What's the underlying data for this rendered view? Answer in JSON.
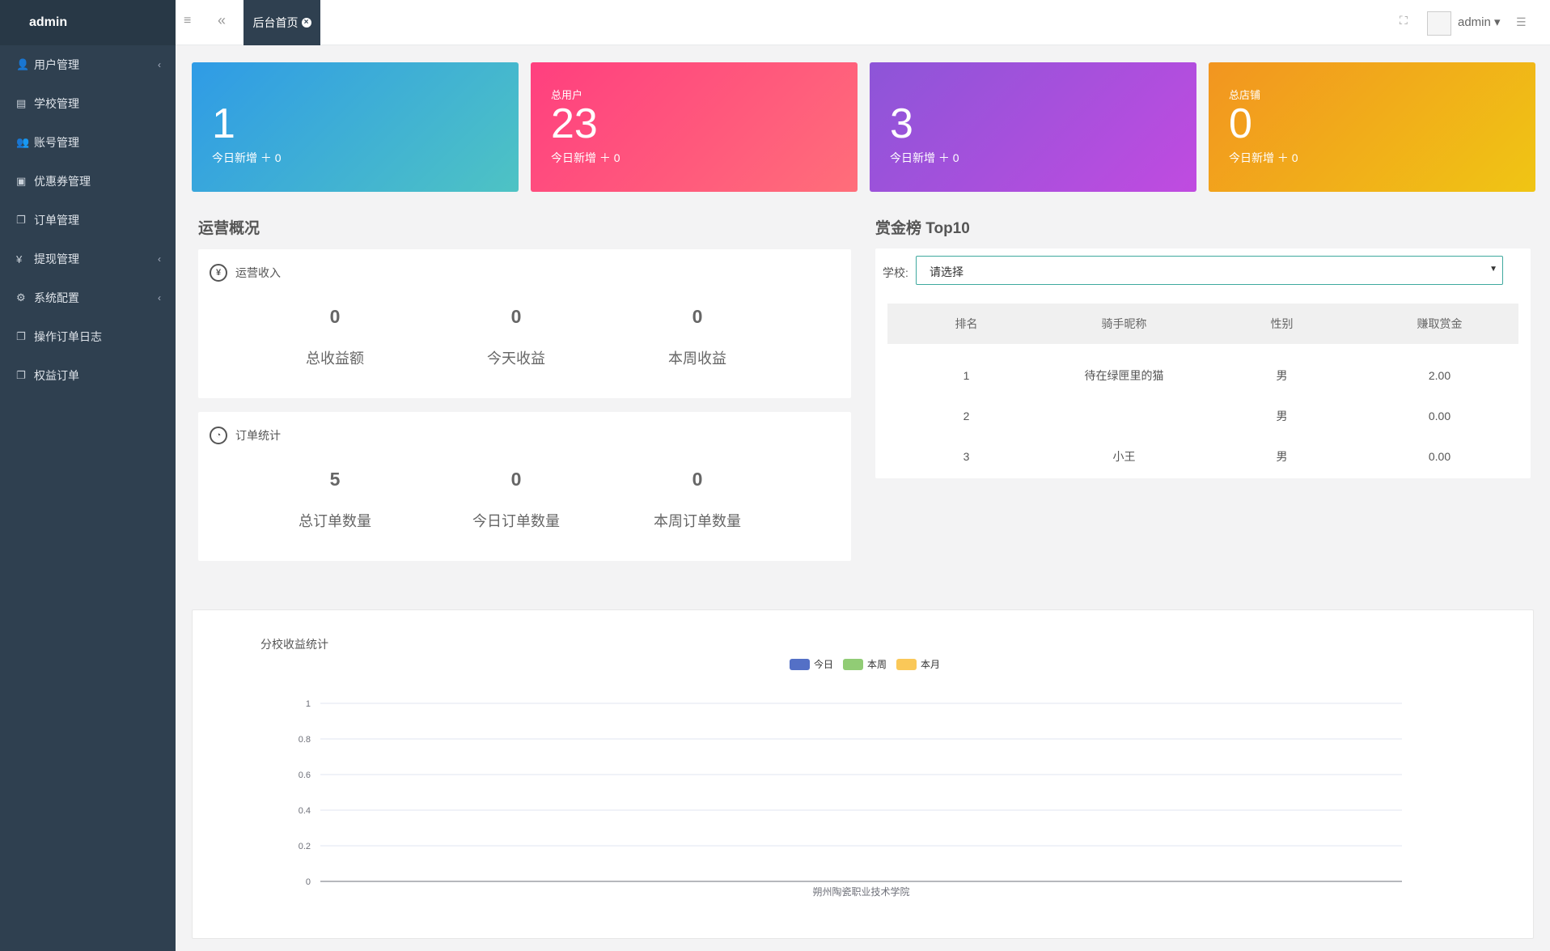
{
  "sidebar": {
    "brand": "admin",
    "items": [
      {
        "label": "用户管理",
        "icon": "user-icon",
        "glyph": "👤",
        "has_children": true
      },
      {
        "label": "学校管理",
        "icon": "building-icon",
        "glyph": "▤",
        "has_children": false
      },
      {
        "label": "账号管理",
        "icon": "users-icon",
        "glyph": "👥",
        "has_children": false
      },
      {
        "label": "优惠券管理",
        "icon": "money-icon",
        "glyph": "▣",
        "has_children": false
      },
      {
        "label": "订单管理",
        "icon": "copy-icon",
        "glyph": "❐",
        "has_children": false
      },
      {
        "label": "提现管理",
        "icon": "yen-icon",
        "glyph": "¥",
        "has_children": true
      },
      {
        "label": "系统配置",
        "icon": "gear-icon",
        "glyph": "⚙",
        "has_children": true
      },
      {
        "label": "操作订单日志",
        "icon": "copy-icon",
        "glyph": "❐",
        "has_children": false
      },
      {
        "label": "权益订单",
        "icon": "copy-icon",
        "glyph": "❐",
        "has_children": false
      }
    ]
  },
  "topbar": {
    "menu_icon": "≡",
    "back_icon": "«",
    "active_tab": "后台首页",
    "fullscreen_icon": "⛶",
    "user": "admin ▾",
    "list_icon": "☰"
  },
  "cards": [
    {
      "label": "",
      "value": "1",
      "sub": "今日新增 ＋ 0"
    },
    {
      "label": "总用户",
      "value": "23",
      "sub": "今日新增 ＋ 0"
    },
    {
      "label": "",
      "value": "3",
      "sub": "今日新增 ＋ 0"
    },
    {
      "label": "总店铺",
      "value": "0",
      "sub": "今日新增 ＋ 0"
    }
  ],
  "operations": {
    "title": "运营概况",
    "revenue": {
      "heading": "运营收入",
      "icon_glyph": "¥",
      "stats": [
        {
          "value": "0",
          "label": "总收益额"
        },
        {
          "value": "0",
          "label": "今天收益"
        },
        {
          "value": "0",
          "label": "本周收益"
        }
      ]
    },
    "orders": {
      "heading": "订单统计",
      "icon_glyph": "◔",
      "stats": [
        {
          "value": "5",
          "label": "总订单数量"
        },
        {
          "value": "0",
          "label": "今日订单数量"
        },
        {
          "value": "0",
          "label": "本周订单数量"
        }
      ]
    }
  },
  "ranking": {
    "title": "赏金榜 Top10",
    "school_label": "学校:",
    "select_value": "请选择",
    "headers": [
      "排名",
      "骑手昵称",
      "性别",
      "赚取赏金"
    ],
    "rows": [
      [
        "1",
        "待在绿匣里的猫",
        "男",
        "2.00"
      ],
      [
        "2",
        "",
        "男",
        "0.00"
      ],
      [
        "3",
        "小王",
        "男",
        "0.00"
      ]
    ]
  },
  "chart_panel": {
    "title": "分校收益统计"
  },
  "chart_data": {
    "type": "bar",
    "categories": [
      "朔州陶瓷职业技术学院"
    ],
    "series": [
      {
        "name": "今日",
        "values": [
          0
        ],
        "color": "#5470c6"
      },
      {
        "name": "本周",
        "values": [
          0
        ],
        "color": "#91cc75"
      },
      {
        "name": "本月",
        "values": [
          0
        ],
        "color": "#fac858"
      }
    ],
    "ylim": [
      0,
      1
    ],
    "yticks": [
      "0",
      "0.2",
      "0.4",
      "0.6",
      "0.8",
      "1"
    ],
    "grid": true,
    "legend": "top-center"
  }
}
